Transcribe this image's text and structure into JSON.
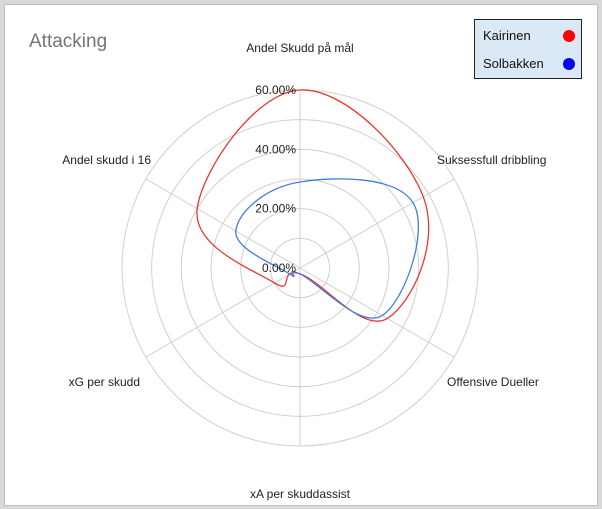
{
  "chart_data": {
    "type": "radar",
    "title": "Attacking",
    "axes": [
      "Andel Skudd på mål",
      "Suksessfull dribbling",
      "Offensive Dueller",
      "xA per skuddassist",
      "xG per skudd",
      "Andel skudd i 16"
    ],
    "radial_range": [
      0,
      0.6
    ],
    "radial_ticks": [
      "0.00%",
      "20.00%",
      "40.00%",
      "60.00%"
    ],
    "grid": true,
    "legend_position": "top-right",
    "series": [
      {
        "name": "Kairinen",
        "color": "#e8382f",
        "values": [
          0.6,
          0.48,
          0.34,
          0.02,
          0.1,
          0.4
        ]
      },
      {
        "name": "Solbakken",
        "color": "#3f7fdc",
        "values": [
          0.29,
          0.44,
          0.32,
          0.02,
          0.04,
          0.25
        ]
      }
    ]
  },
  "colors": {
    "grid": "#cfcfcf",
    "legend_marker_kairinen": "#ff0000",
    "legend_marker_solbakken": "#0000ff"
  }
}
